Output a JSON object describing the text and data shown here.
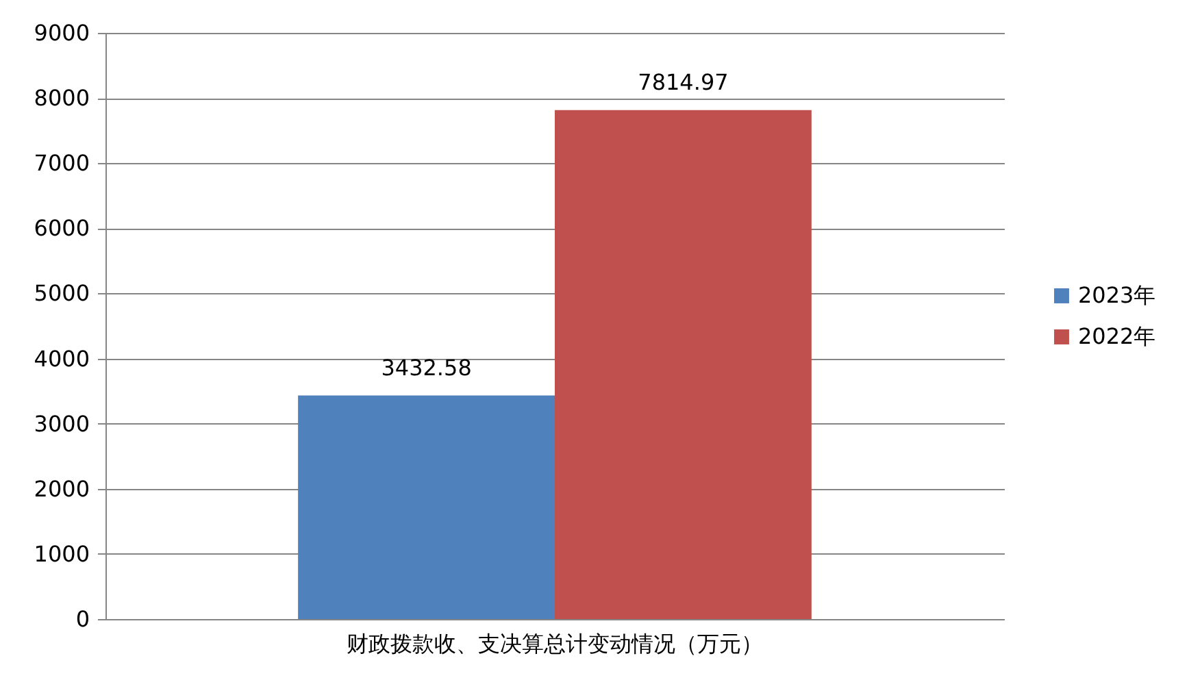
{
  "chart_data": {
    "type": "bar",
    "categories": [
      "财政拨款收、支决算总计变动情况（万元）"
    ],
    "series": [
      {
        "name": "2023年",
        "color": "#4f81bd",
        "values": [
          3432.58
        ]
      },
      {
        "name": "2022年",
        "color": "#c0504d",
        "values": [
          7814.97
        ]
      }
    ],
    "ylim": [
      0,
      9000
    ],
    "yticks": [
      0,
      1000,
      2000,
      3000,
      4000,
      5000,
      6000,
      7000,
      8000,
      9000
    ],
    "grid": "y",
    "legend": "right",
    "data_labels": true
  }
}
